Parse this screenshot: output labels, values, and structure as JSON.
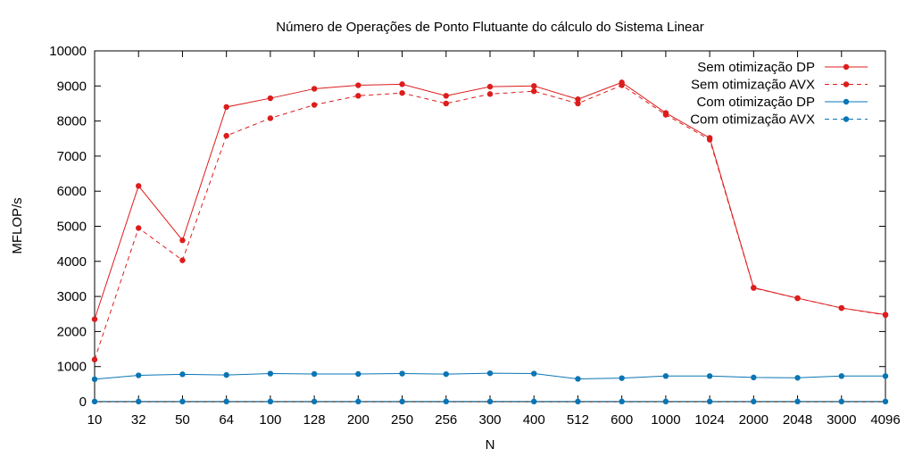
{
  "chart_data": {
    "type": "line",
    "title": "Número de Operações de Ponto Flutuante do cálculo do Sistema Linear",
    "xlabel": "N",
    "ylabel": "MFLOP/s",
    "ylim": [
      0,
      10000
    ],
    "yticks": [
      "0",
      "1000",
      "2000",
      "3000",
      "4000",
      "5000",
      "6000",
      "7000",
      "8000",
      "9000",
      "10000"
    ],
    "categories": [
      "10",
      "32",
      "50",
      "64",
      "100",
      "128",
      "200",
      "250",
      "256",
      "300",
      "400",
      "512",
      "600",
      "1000",
      "1024",
      "2000",
      "2048",
      "3000",
      "4096"
    ],
    "grid": false,
    "legend_position": "top-right",
    "series": [
      {
        "name": "Sem otimização DP",
        "color": "#dd1c1c",
        "dash": "solid",
        "values": [
          2350,
          6150,
          4600,
          8400,
          8650,
          8920,
          9020,
          9050,
          8720,
          8980,
          9000,
          8620,
          9100,
          8230,
          7520,
          3250,
          2950,
          2670,
          2480
        ]
      },
      {
        "name": "Sem otimização AVX",
        "color": "#dd1c1c",
        "dash": "dashed",
        "values": [
          1200,
          4950,
          4030,
          7580,
          8080,
          8460,
          8720,
          8800,
          8500,
          8770,
          8850,
          8500,
          9020,
          8180,
          7470,
          3240,
          2950,
          2670,
          2470
        ]
      },
      {
        "name": "Com otimização DP",
        "color": "#0a75b4",
        "dash": "solid",
        "values": [
          640,
          750,
          780,
          760,
          800,
          790,
          790,
          800,
          785,
          810,
          800,
          650,
          670,
          730,
          730,
          690,
          680,
          730,
          730
        ]
      },
      {
        "name": "Com otimização AVX",
        "color": "#0a75b4",
        "dash": "dashed",
        "values": [
          5,
          5,
          5,
          5,
          5,
          5,
          5,
          5,
          5,
          5,
          5,
          5,
          5,
          5,
          5,
          5,
          5,
          5,
          5
        ]
      }
    ]
  }
}
